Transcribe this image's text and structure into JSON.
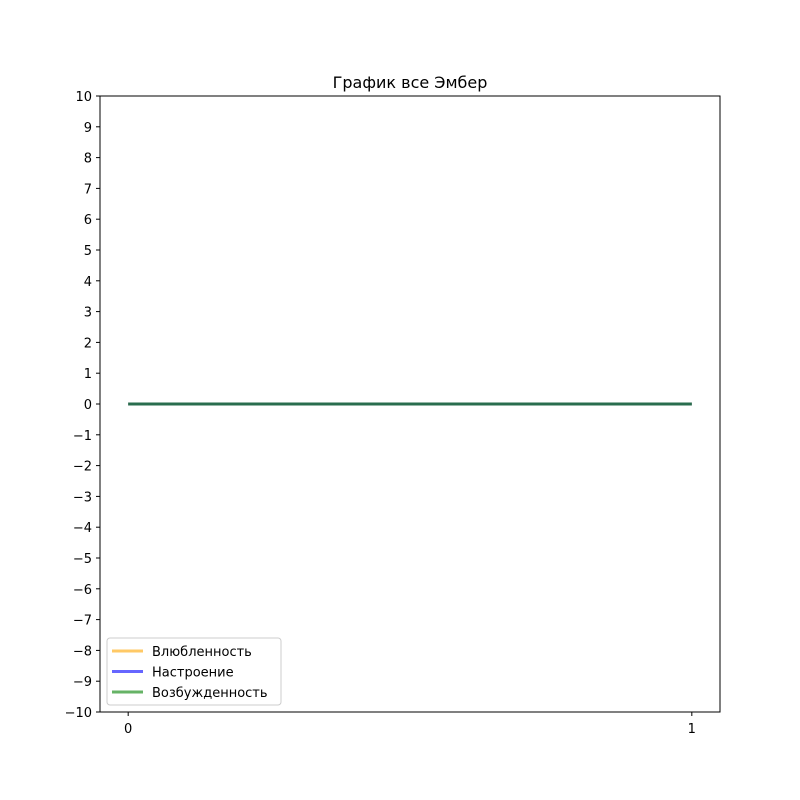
{
  "chart_data": {
    "type": "line",
    "title": "График все Эмбер",
    "xlabel": "",
    "ylabel": "",
    "x": [
      0,
      1
    ],
    "x_ticks": [
      "0",
      "1"
    ],
    "y_ticks": [
      "10",
      "9",
      "8",
      "7",
      "6",
      "5",
      "4",
      "3",
      "2",
      "1",
      "0",
      "−1",
      "−2",
      "−3",
      "−4",
      "−5",
      "−6",
      "−7",
      "−8",
      "−9",
      "−10"
    ],
    "xlim": [
      -0.05,
      1.05
    ],
    "ylim": [
      -10,
      10
    ],
    "grid": false,
    "legend_position": "lower left",
    "series": [
      {
        "name": "Влюбленность",
        "values": [
          0,
          0
        ],
        "color": "#FFA500",
        "opacity": 0.6
      },
      {
        "name": "Настроение",
        "values": [
          0,
          0
        ],
        "color": "#0000FF",
        "opacity": 0.6
      },
      {
        "name": "Возбужденность",
        "values": [
          0,
          0
        ],
        "color": "#008000",
        "opacity": 0.6
      }
    ]
  }
}
